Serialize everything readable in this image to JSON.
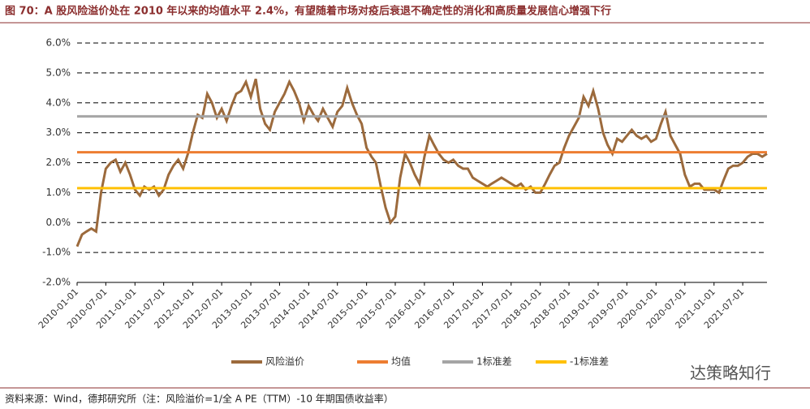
{
  "chart_data": {
    "type": "line",
    "title": "图 70：A 股风险溢价处在 2010 年以来的均值水平 2.4%，有望随着市场对疫后衰退不确定性的消化和高质量发展信心增强下行",
    "source": "资料来源：Wind，德邦研究所（注：风险溢价=1/全 A PE（TTM）-10 年期国债收益率）",
    "watermark": "达策略知行",
    "x": [
      "2010-01-01",
      "2010-02-01",
      "2010-03-01",
      "2010-04-01",
      "2010-05-01",
      "2010-06-01",
      "2010-07-01",
      "2010-08-01",
      "2010-09-01",
      "2010-10-01",
      "2010-11-01",
      "2010-12-01",
      "2011-01-01",
      "2011-02-01",
      "2011-03-01",
      "2011-04-01",
      "2011-05-01",
      "2011-06-01",
      "2011-07-01",
      "2011-08-01",
      "2011-09-01",
      "2011-10-01",
      "2011-11-01",
      "2011-12-01",
      "2012-01-01",
      "2012-02-01",
      "2012-03-01",
      "2012-04-01",
      "2012-05-01",
      "2012-06-01",
      "2012-07-01",
      "2012-08-01",
      "2012-09-01",
      "2012-10-01",
      "2012-11-01",
      "2012-12-01",
      "2013-01-01",
      "2013-02-01",
      "2013-03-01",
      "2013-04-01",
      "2013-05-01",
      "2013-06-01",
      "2013-07-01",
      "2013-08-01",
      "2013-09-01",
      "2013-10-01",
      "2013-11-01",
      "2013-12-01",
      "2014-01-01",
      "2014-02-01",
      "2014-03-01",
      "2014-04-01",
      "2014-05-01",
      "2014-06-01",
      "2014-07-01",
      "2014-08-01",
      "2014-09-01",
      "2014-10-01",
      "2014-11-01",
      "2014-12-01",
      "2015-01-01",
      "2015-02-01",
      "2015-03-01",
      "2015-04-01",
      "2015-05-01",
      "2015-06-01",
      "2015-07-01",
      "2015-08-01",
      "2015-09-01",
      "2015-10-01",
      "2015-11-01",
      "2015-12-01",
      "2016-01-01",
      "2016-02-01",
      "2016-03-01",
      "2016-04-01",
      "2016-05-01",
      "2016-06-01",
      "2016-07-01",
      "2016-08-01",
      "2016-09-01",
      "2016-10-01",
      "2016-11-01",
      "2016-12-01",
      "2017-01-01",
      "2017-02-01",
      "2017-03-01",
      "2017-04-01",
      "2017-05-01",
      "2017-06-01",
      "2017-07-01",
      "2017-08-01",
      "2017-09-01",
      "2017-10-01",
      "2017-11-01",
      "2017-12-01",
      "2018-01-01",
      "2018-02-01",
      "2018-03-01",
      "2018-04-01",
      "2018-05-01",
      "2018-06-01",
      "2018-07-01",
      "2018-08-01",
      "2018-09-01",
      "2018-10-01",
      "2018-11-01",
      "2018-12-01",
      "2019-01-01",
      "2019-02-01",
      "2019-03-01",
      "2019-04-01",
      "2019-05-01",
      "2019-06-01",
      "2019-07-01",
      "2019-08-01",
      "2019-09-01",
      "2019-10-01",
      "2019-11-01",
      "2019-12-01",
      "2020-01-01",
      "2020-02-01",
      "2020-03-01",
      "2020-04-01",
      "2020-05-01",
      "2020-06-01",
      "2020-07-01",
      "2020-08-01",
      "2020-09-01",
      "2020-10-01",
      "2020-11-01",
      "2020-12-01",
      "2021-01-01",
      "2021-02-01",
      "2021-03-01",
      "2021-04-01",
      "2021-05-01",
      "2021-06-01",
      "2021-07-01",
      "2021-08-01",
      "2021-09-01",
      "2021-10-01",
      "2021-11-01",
      "2021-12-01"
    ],
    "series": [
      {
        "name": "风险溢价",
        "color": "#9c6a3c",
        "values": [
          -0.8,
          -0.4,
          -0.3,
          -0.2,
          -0.3,
          1.0,
          1.8,
          2.0,
          2.1,
          1.7,
          2.0,
          1.6,
          1.1,
          0.9,
          1.2,
          1.1,
          1.2,
          0.9,
          1.1,
          1.6,
          1.9,
          2.1,
          1.8,
          2.3,
          3.0,
          3.6,
          3.5,
          4.3,
          4.0,
          3.5,
          3.8,
          3.4,
          3.9,
          4.3,
          4.4,
          4.7,
          4.2,
          4.8,
          3.8,
          3.3,
          3.1,
          3.7,
          4.0,
          4.3,
          4.7,
          4.4,
          4.0,
          3.4,
          3.9,
          3.6,
          3.4,
          3.8,
          3.5,
          3.2,
          3.7,
          3.9,
          4.5,
          4.0,
          3.6,
          3.3,
          2.5,
          2.2,
          2.0,
          1.2,
          0.5,
          0.0,
          0.2,
          1.5,
          2.3,
          2.0,
          1.6,
          1.3,
          2.2,
          2.9,
          2.6,
          2.3,
          2.1,
          2.0,
          2.1,
          1.9,
          1.8,
          1.8,
          1.5,
          1.4,
          1.3,
          1.2,
          1.3,
          1.4,
          1.5,
          1.4,
          1.3,
          1.2,
          1.3,
          1.1,
          1.2,
          1.0,
          1.0,
          1.3,
          1.6,
          1.9,
          2.0,
          2.5,
          2.9,
          3.2,
          3.5,
          4.2,
          3.9,
          4.4,
          3.8,
          3.0,
          2.6,
          2.3,
          2.8,
          2.7,
          2.9,
          3.1,
          2.9,
          2.8,
          2.9,
          2.7,
          2.8,
          3.3,
          3.7,
          2.9,
          2.6,
          2.3,
          1.6,
          1.2,
          1.3,
          1.3,
          1.1,
          1.1,
          1.1,
          1.0,
          1.4,
          1.8,
          1.9,
          1.9,
          2.0,
          2.2,
          2.3,
          2.3,
          2.2,
          2.3
        ]
      },
      {
        "name": "均值",
        "color": "#ed7d31",
        "value": 2.35
      },
      {
        "name": "1标准差",
        "color": "#a5a5a5",
        "value": 3.55
      },
      {
        "name": "-1标准差",
        "color": "#ffc000",
        "value": 1.15
      }
    ],
    "xlim": [
      "2010-01-01",
      "2021-12-01"
    ],
    "xticks": [
      "2010-01-01",
      "2010-07-01",
      "2011-01-01",
      "2011-07-01",
      "2012-01-01",
      "2012-07-01",
      "2013-01-01",
      "2013-07-01",
      "2014-01-01",
      "2014-07-01",
      "2015-01-01",
      "2015-07-01",
      "2016-01-01",
      "2016-07-01",
      "2017-01-01",
      "2017-07-01",
      "2018-01-01",
      "2018-07-01",
      "2019-01-01",
      "2019-07-01",
      "2020-01-01",
      "2020-07-01",
      "2021-01-01",
      "2021-07-01"
    ],
    "ylim": [
      -2,
      6
    ],
    "yticks": [
      {
        "value": -2,
        "label": "-2.0%"
      },
      {
        "value": -1,
        "label": "-1.0%"
      },
      {
        "value": 0,
        "label": "0.0%"
      },
      {
        "value": 1,
        "label": "1.0%"
      },
      {
        "value": 2,
        "label": "2.0%"
      },
      {
        "value": 3,
        "label": "3.0%"
      },
      {
        "value": 4,
        "label": "4.0%"
      },
      {
        "value": 5,
        "label": "5.0%"
      },
      {
        "value": 6,
        "label": "6.0%"
      }
    ],
    "grid": true
  }
}
